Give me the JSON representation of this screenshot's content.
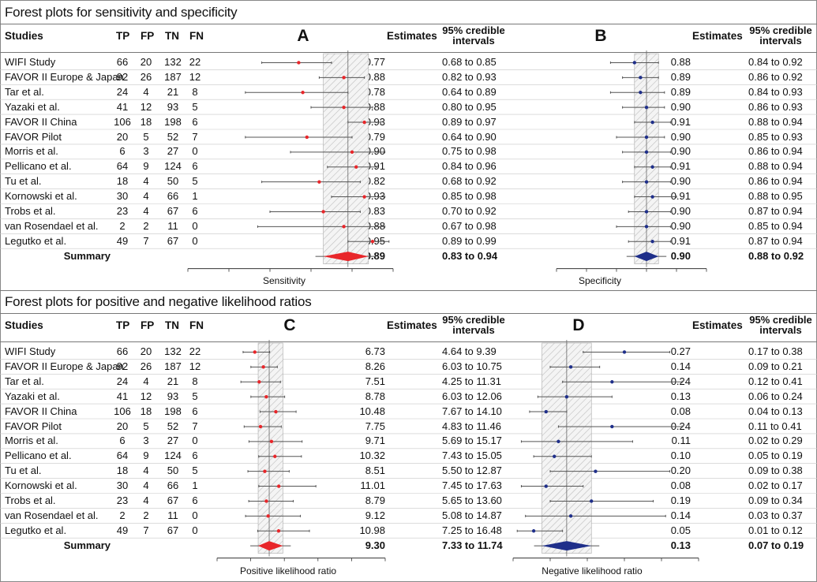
{
  "sections": [
    {
      "title": "Forest plots for sensitivity and specificity",
      "columns": {
        "studies": "Studies",
        "tp": "TP",
        "fp": "FP",
        "tn": "TN",
        "fn": "FN"
      },
      "estimates_label": "Estimates",
      "ci_label": [
        "95% credible",
        "intervals"
      ],
      "summary_label": "Summary",
      "studies": [
        {
          "name": "WIFI Study",
          "tp": "66",
          "fp": "20",
          "tn": "132",
          "fn": "22"
        },
        {
          "name": "FAVOR II Europe & Japan",
          "tp": "92",
          "fp": "26",
          "tn": "187",
          "fn": "12"
        },
        {
          "name": "Tar et al.",
          "tp": "24",
          "fp": "4",
          "tn": "21",
          "fn": "8"
        },
        {
          "name": "Yazaki et al.",
          "tp": "41",
          "fp": "12",
          "tn": "93",
          "fn": "5"
        },
        {
          "name": "FAVOR II China",
          "tp": "106",
          "fp": "18",
          "tn": "198",
          "fn": "6"
        },
        {
          "name": "FAVOR Pilot",
          "tp": "20",
          "fp": "5",
          "tn": "52",
          "fn": "7"
        },
        {
          "name": "Morris et al.",
          "tp": "6",
          "fp": "3",
          "tn": "27",
          "fn": "0"
        },
        {
          "name": "Pellicano et al.",
          "tp": "64",
          "fp": "9",
          "tn": "124",
          "fn": "6"
        },
        {
          "name": "Tu et al.",
          "tp": "18",
          "fp": "4",
          "tn": "50",
          "fn": "5"
        },
        {
          "name": "Kornowski et al.",
          "tp": "30",
          "fp": "4",
          "tn": "66",
          "fn": "1"
        },
        {
          "name": "Trobs et al.",
          "tp": "23",
          "fp": "4",
          "tn": "67",
          "fn": "6"
        },
        {
          "name": "van Rosendael et al.",
          "tp": "2",
          "fp": "2",
          "tn": "11",
          "fn": "0"
        },
        {
          "name": "Legutko et al.",
          "tp": "49",
          "fp": "7",
          "tn": "67",
          "fn": "0"
        }
      ]
    },
    {
      "title": "Forest plots for positive and negative likelihood ratios",
      "columns": {
        "studies": "Studies",
        "tp": "TP",
        "fp": "FP",
        "tn": "TN",
        "fn": "FN"
      },
      "estimates_label": "Estimates",
      "ci_label": [
        "95% credible",
        "intervals"
      ],
      "summary_label": "Summary",
      "studies": [
        {
          "name": "WIFI Study",
          "tp": "66",
          "fp": "20",
          "tn": "132",
          "fn": "22"
        },
        {
          "name": "FAVOR II Europe & Japan",
          "tp": "92",
          "fp": "26",
          "tn": "187",
          "fn": "12"
        },
        {
          "name": "Tar et al.",
          "tp": "24",
          "fp": "4",
          "tn": "21",
          "fn": "8"
        },
        {
          "name": "Yazaki et al.",
          "tp": "41",
          "fp": "12",
          "tn": "93",
          "fn": "5"
        },
        {
          "name": "FAVOR II China",
          "tp": "106",
          "fp": "18",
          "tn": "198",
          "fn": "6"
        },
        {
          "name": "FAVOR Pilot",
          "tp": "20",
          "fp": "5",
          "tn": "52",
          "fn": "7"
        },
        {
          "name": "Morris et al.",
          "tp": "6",
          "fp": "3",
          "tn": "27",
          "fn": "0"
        },
        {
          "name": "Pellicano et al.",
          "tp": "64",
          "fp": "9",
          "tn": "124",
          "fn": "6"
        },
        {
          "name": "Tu et al.",
          "tp": "18",
          "fp": "4",
          "tn": "50",
          "fn": "5"
        },
        {
          "name": "Kornowski et al.",
          "tp": "30",
          "fp": "4",
          "tn": "66",
          "fn": "1"
        },
        {
          "name": "Trobs et al.",
          "tp": "23",
          "fp": "4",
          "tn": "67",
          "fn": "6"
        },
        {
          "name": "van Rosendael et al.",
          "tp": "2",
          "fp": "2",
          "tn": "11",
          "fn": "0"
        },
        {
          "name": "Legutko et al.",
          "tp": "49",
          "fp": "7",
          "tn": "67",
          "fn": "0"
        }
      ]
    }
  ],
  "chart_data": [
    {
      "type": "forest",
      "panel": "A",
      "xlabel": "Sensitivity",
      "xlim": [
        0.5,
        1.0
      ],
      "marker_color": "#e8262a",
      "estimates": [
        0.77,
        0.88,
        0.78,
        0.88,
        0.93,
        0.79,
        0.9,
        0.91,
        0.82,
        0.93,
        0.83,
        0.88,
        0.95
      ],
      "ci_text": [
        "0.68 to 0.85",
        "0.82 to 0.93",
        "0.64 to 0.89",
        "0.80 to 0.95",
        "0.89 to 0.97",
        "0.64 to 0.90",
        "0.75 to 0.98",
        "0.84 to 0.96",
        "0.68 to 0.92",
        "0.85 to 0.98",
        "0.70 to 0.92",
        "0.67 to 0.98",
        "0.89 to 0.99"
      ],
      "lower": [
        0.68,
        0.82,
        0.64,
        0.8,
        0.89,
        0.64,
        0.75,
        0.84,
        0.68,
        0.85,
        0.7,
        0.67,
        0.89
      ],
      "upper": [
        0.85,
        0.93,
        0.89,
        0.95,
        0.97,
        0.9,
        0.98,
        0.96,
        0.92,
        0.98,
        0.92,
        0.98,
        0.99
      ],
      "summary": {
        "estimate": 0.89,
        "lower": 0.83,
        "upper": 0.94,
        "estimate_text": "0.89",
        "ci_text": "0.83 to 0.94"
      }
    },
    {
      "type": "forest",
      "panel": "B",
      "xlabel": "Specificity",
      "xlim": [
        0.75,
        1.0
      ],
      "marker_color": "#1f2f8a",
      "estimates": [
        0.88,
        0.89,
        0.89,
        0.9,
        0.91,
        0.9,
        0.9,
        0.91,
        0.9,
        0.91,
        0.9,
        0.9,
        0.91
      ],
      "ci_text": [
        "0.84 to 0.92",
        "0.86 to 0.92",
        "0.84 to 0.93",
        "0.86 to 0.93",
        "0.88 to 0.94",
        "0.85 to 0.93",
        "0.86 to 0.94",
        "0.88 to 0.94",
        "0.86 to 0.94",
        "0.88 to 0.95",
        "0.87 to 0.94",
        "0.85 to 0.94",
        "0.87 to 0.94"
      ],
      "lower": [
        0.84,
        0.86,
        0.84,
        0.86,
        0.88,
        0.85,
        0.86,
        0.88,
        0.86,
        0.88,
        0.87,
        0.85,
        0.87
      ],
      "upper": [
        0.92,
        0.92,
        0.93,
        0.93,
        0.94,
        0.93,
        0.94,
        0.94,
        0.94,
        0.95,
        0.94,
        0.94,
        0.94
      ],
      "summary": {
        "estimate": 0.9,
        "lower": 0.88,
        "upper": 0.92,
        "estimate_text": "0.90",
        "ci_text": "0.88 to 0.92"
      }
    },
    {
      "type": "forest",
      "panel": "C",
      "xlabel": "Positive likelihood ratio",
      "xlim": [
        0,
        30
      ],
      "marker_color": "#e8262a",
      "estimates": [
        6.73,
        8.26,
        7.51,
        8.78,
        10.48,
        7.75,
        9.71,
        10.32,
        8.51,
        11.01,
        8.79,
        9.12,
        10.98
      ],
      "ci_text": [
        "4.64 to 9.39",
        "6.03 to 10.75",
        "4.25 to 11.31",
        "6.03 to 12.06",
        "7.67 to 14.10",
        "4.83 to 11.46",
        "5.69 to 15.17",
        "7.43 to 15.05",
        "5.50 to 12.87",
        "7.45 to 17.63",
        "5.65 to 13.60",
        "5.08 to 14.87",
        "7.25 to 16.48"
      ],
      "lower": [
        4.64,
        6.03,
        4.25,
        6.03,
        7.67,
        4.83,
        5.69,
        7.43,
        5.5,
        7.45,
        5.65,
        5.08,
        7.25
      ],
      "upper": [
        9.39,
        10.75,
        11.31,
        12.06,
        14.1,
        11.46,
        15.17,
        15.05,
        12.87,
        17.63,
        13.6,
        14.87,
        16.48
      ],
      "summary": {
        "estimate": 9.3,
        "lower": 7.33,
        "upper": 11.74,
        "estimate_text": "9.30",
        "ci_text": "7.33 to 11.74"
      }
    },
    {
      "type": "forest",
      "panel": "D",
      "xlabel": "Negative likelihood ratio",
      "xlim": [
        0,
        0.45
      ],
      "marker_color": "#1f2f8a",
      "estimates": [
        0.27,
        0.14,
        0.24,
        0.13,
        0.08,
        0.24,
        0.11,
        0.1,
        0.2,
        0.08,
        0.19,
        0.14,
        0.05
      ],
      "ci_text": [
        "0.17 to 0.38",
        "0.09 to 0.21",
        "0.12 to 0.41",
        "0.06 to 0.24",
        "0.04 to 0.13",
        "0.11 to 0.41",
        "0.02 to 0.29",
        "0.05 to 0.19",
        "0.09 to 0.38",
        "0.02 to 0.17",
        "0.09 to 0.34",
        "0.03 to 0.37",
        "0.01 to 0.12"
      ],
      "lower": [
        0.17,
        0.09,
        0.12,
        0.06,
        0.04,
        0.11,
        0.02,
        0.05,
        0.09,
        0.02,
        0.09,
        0.03,
        0.01
      ],
      "upper": [
        0.38,
        0.21,
        0.41,
        0.24,
        0.13,
        0.41,
        0.29,
        0.19,
        0.38,
        0.17,
        0.34,
        0.37,
        0.12
      ],
      "summary": {
        "estimate": 0.13,
        "lower": 0.07,
        "upper": 0.19,
        "estimate_text": "0.13",
        "ci_text": "0.07 to 0.19"
      }
    }
  ]
}
